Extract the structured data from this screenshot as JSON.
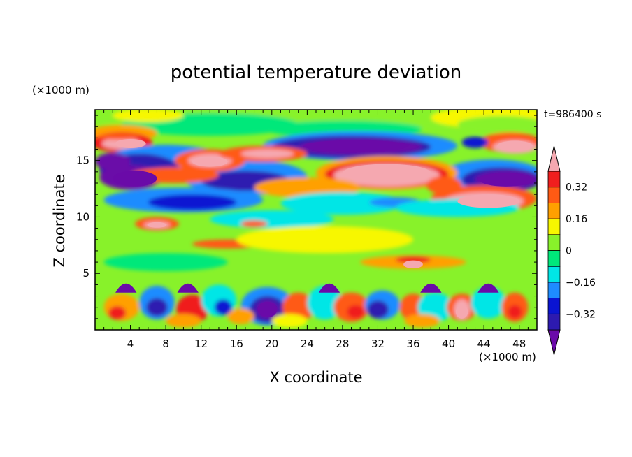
{
  "chart_data": {
    "type": "heatmap",
    "title": "potential temperature deviation",
    "xlabel": "X coordinate",
    "ylabel": "Z coordinate",
    "x_unit": "(×1000 m)",
    "y_unit": "(×1000 m)",
    "time_label": "t=986400 s",
    "xlim": [
      0,
      50
    ],
    "ylim": [
      0,
      19.5
    ],
    "x_ticks": [
      4,
      8,
      12,
      16,
      20,
      24,
      28,
      32,
      36,
      40,
      44,
      48
    ],
    "y_ticks": [
      5,
      10,
      15
    ],
    "grid": false,
    "legend": "right",
    "colorbar": {
      "levels": [
        -0.4,
        -0.32,
        -0.24,
        -0.16,
        -0.08,
        0,
        0.08,
        0.16,
        0.24,
        0.32,
        0.4
      ],
      "labels": [
        {
          "value": 0.32,
          "text": "0.32"
        },
        {
          "value": 0.16,
          "text": "0.16"
        },
        {
          "value": 0,
          "text": "0"
        },
        {
          "value": -0.16,
          "text": "−0.16"
        },
        {
          "value": -0.32,
          "text": "−0.32"
        }
      ],
      "colors": [
        "#6a0aa8",
        "#2d1ab0",
        "#0a14d2",
        "#1e8cff",
        "#00e6e6",
        "#00e87a",
        "#88f22a",
        "#f7f700",
        "#ffa000",
        "#ff5a14",
        "#f01e1e",
        "#f5a8b0"
      ]
    }
  }
}
